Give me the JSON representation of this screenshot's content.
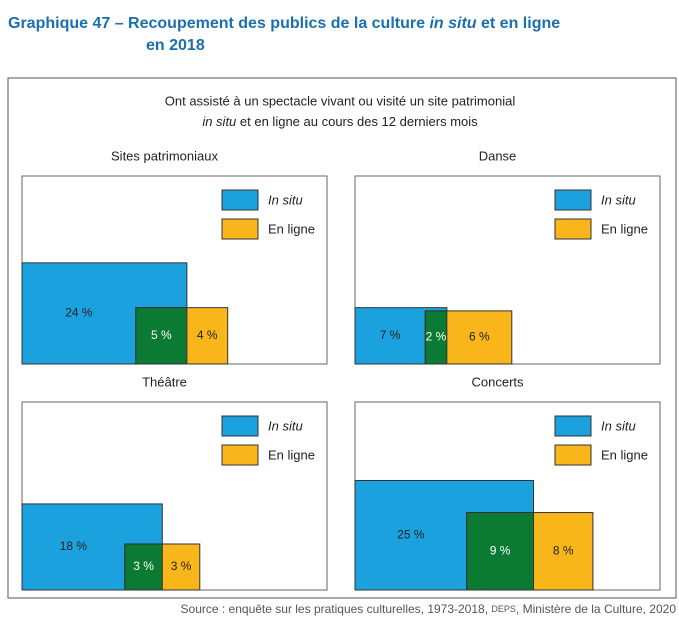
{
  "title": [
    "Graphique 47 – Recoupement des publics de la culture ",
    "in situ",
    " et en ligne",
    "en 2018"
  ],
  "subtitle": [
    "Ont assisté à un spectacle vivant ou visité un site patrimonial",
    "in situ",
    " et en ligne au cours des 12 derniers mois"
  ],
  "source": [
    "Source : enquête sur les pratiques culturelles, 1973-2018, ",
    "DEPS",
    ", Ministère de la Culture, 2020"
  ],
  "chart_data": [
    {
      "type": "overlap",
      "title": "Sites patrimoniaux",
      "values": [
        24,
        5,
        4
      ],
      "value_labels": [
        "24 %",
        "5 %",
        "4 %"
      ],
      "colors": [
        "#1ba1dd",
        "#0b7a32",
        "#f8b61b"
      ],
      "legend": [
        {
          "name": "In situ",
          "color": "#1ba1dd"
        },
        {
          "name": "En ligne",
          "color": "#f8b61b"
        }
      ]
    },
    {
      "type": "overlap",
      "title": "Danse",
      "values": [
        7,
        2,
        6
      ],
      "value_labels": [
        "7 %",
        "2 %",
        "6 %"
      ],
      "colors": [
        "#1ba1dd",
        "#0b7a32",
        "#f8b61b"
      ],
      "legend": [
        {
          "name": "In situ",
          "color": "#1ba1dd"
        },
        {
          "name": "En ligne",
          "color": "#f8b61b"
        }
      ]
    },
    {
      "type": "overlap",
      "title": "Théâtre",
      "values": [
        18,
        3,
        3
      ],
      "value_labels": [
        "18 %",
        "3 %",
        "3 %"
      ],
      "colors": [
        "#1ba1dd",
        "#0b7a32",
        "#f8b61b"
      ],
      "legend": [
        {
          "name": "In situ",
          "color": "#1ba1dd"
        },
        {
          "name": "En ligne",
          "color": "#f8b61b"
        }
      ]
    },
    {
      "type": "overlap",
      "title": "Concerts",
      "values": [
        25,
        9,
        8
      ],
      "value_labels": [
        "25 %",
        "9 %",
        "8 %"
      ],
      "colors": [
        "#1ba1dd",
        "#0b7a32",
        "#f8b61b"
      ],
      "legend": [
        {
          "name": "In situ",
          "color": "#1ba1dd"
        },
        {
          "name": "En ligne",
          "color": "#f8b61b"
        }
      ]
    }
  ]
}
